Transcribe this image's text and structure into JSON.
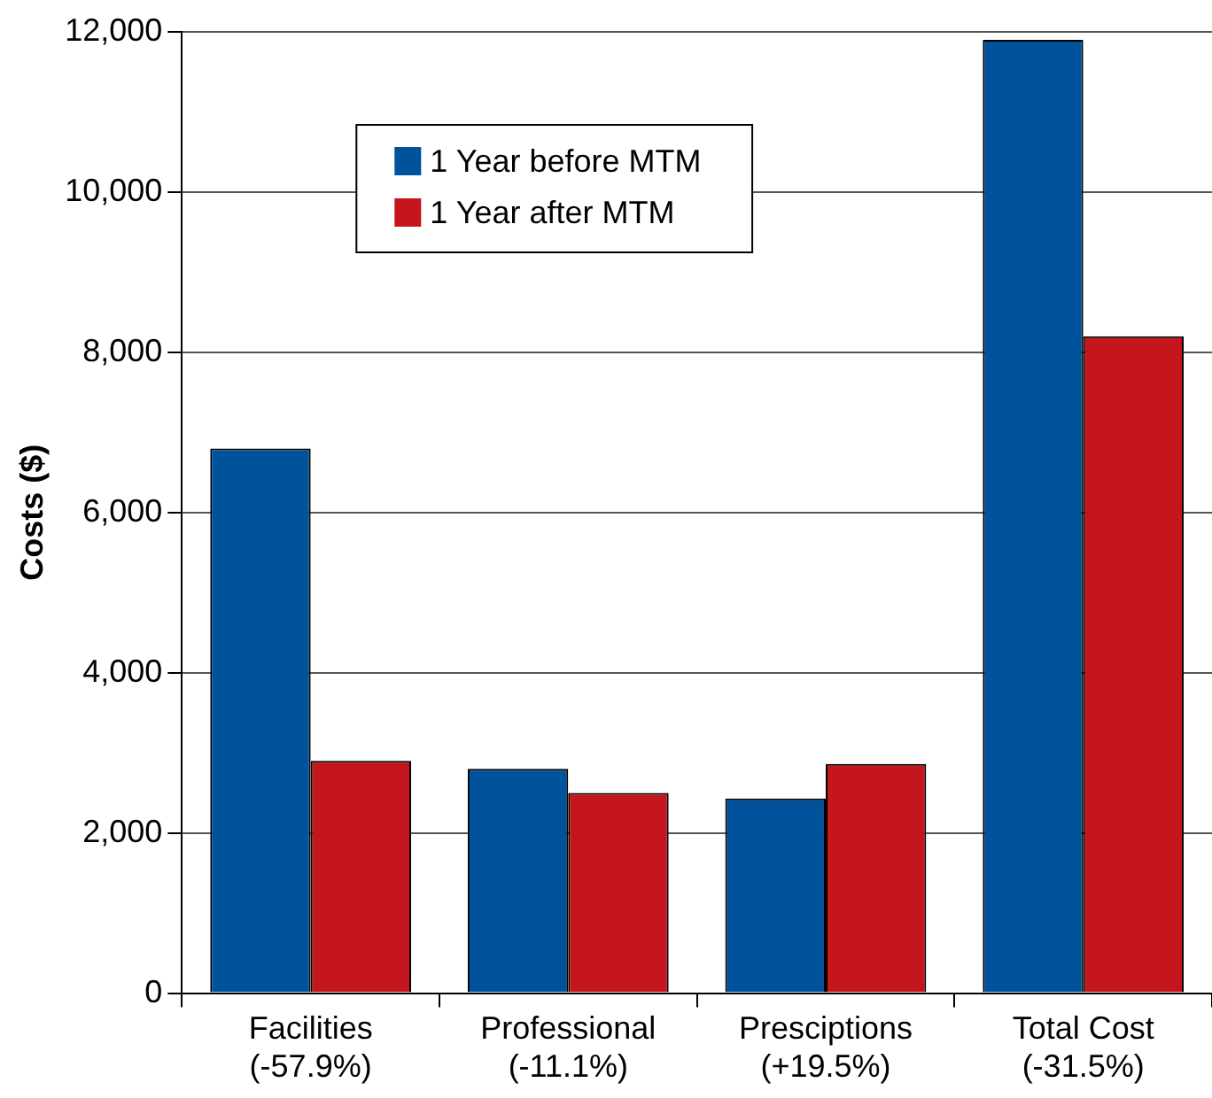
{
  "chart_data": {
    "type": "bar",
    "ylabel": "Costs ($)",
    "categories": [
      "Facilities\n(-57.9%)",
      "Professional\n(-11.1%)",
      "Presciptions\n(+19.5%)",
      "Total Cost\n(-31.5%)"
    ],
    "series": [
      {
        "name": "1 Year before MTM",
        "color": "#00529b",
        "values": [
          6800,
          2800,
          2430,
          11900
        ]
      },
      {
        "name": "1 Year after MTM",
        "color": "#c4161c",
        "values": [
          2900,
          2500,
          2860,
          8200
        ]
      }
    ],
    "ylim": [
      0,
      12000
    ],
    "yticks": [
      {
        "value": 0,
        "label": "0"
      },
      {
        "value": 2000,
        "label": "2,000"
      },
      {
        "value": 4000,
        "label": "4,000"
      },
      {
        "value": 6000,
        "label": "6,000"
      },
      {
        "value": 8000,
        "label": "8,000"
      },
      {
        "value": 10000,
        "label": "10,000"
      },
      {
        "value": 12000,
        "label": "12,000"
      }
    ],
    "grid": "y",
    "legend": "top left"
  }
}
